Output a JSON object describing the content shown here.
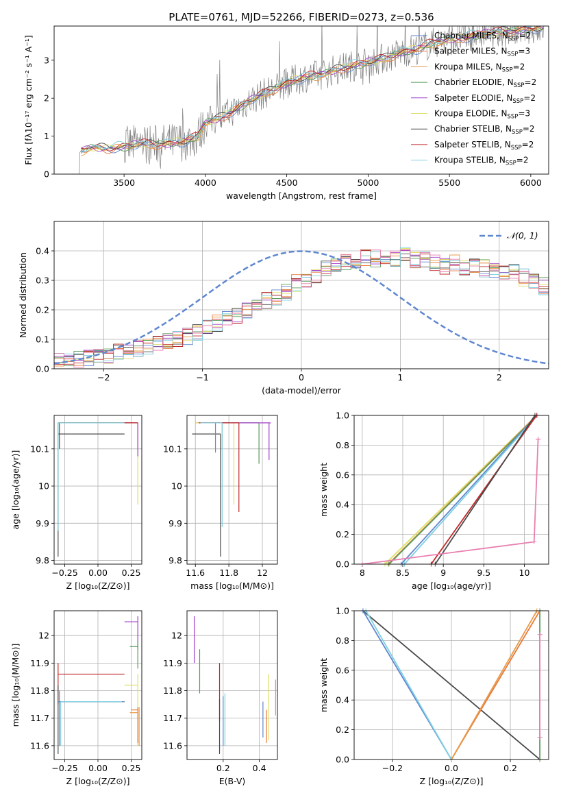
{
  "figure": {
    "title": "PLATE=0761, MJD=52266, FIBERID=0273, z=0.536"
  },
  "palette": {
    "blue": "#5f87d0",
    "orange": "#e8793a",
    "lightorange": "#e89a4a",
    "green": "#5a9a5a",
    "purple": "#a03cc8",
    "yellow": "#dede68",
    "darkgray": "#4a4a4a",
    "red": "#c0282a",
    "cyan": "#7fd0e0",
    "pink": "#e87fb0",
    "data": "#808080"
  },
  "chart_data": [
    {
      "id": "spectrum",
      "type": "line",
      "xlabel": "wavelength [Angstrom, rest frame]",
      "ylabel": "Flux [fλ10⁻¹⁷ erg cm⁻² s⁻¹ A⁻¹]",
      "xlim": [
        3070,
        6110
      ],
      "ylim": [
        0,
        3.9
      ],
      "xticks": [
        3500,
        4000,
        4500,
        5000,
        5500,
        6000
      ],
      "yticks": [
        0,
        1,
        2,
        3
      ],
      "legend_position": "top-right",
      "grid": false,
      "continuum_x": [
        3230,
        3300,
        3400,
        3500,
        3600,
        3700,
        3800,
        3900,
        3950,
        4000,
        4100,
        4200,
        4300,
        4400,
        4500,
        4600,
        4700,
        4800,
        4900,
        5000,
        5100,
        5200,
        5300,
        5400,
        5500,
        5600,
        5700,
        5800,
        5900,
        6000
      ],
      "continuum_y": [
        0.6,
        0.7,
        0.68,
        0.72,
        0.8,
        0.78,
        0.82,
        0.9,
        0.98,
        1.35,
        1.5,
        1.75,
        2.0,
        2.2,
        2.4,
        2.55,
        2.6,
        2.75,
        2.85,
        2.95,
        3.05,
        3.2,
        3.3,
        3.45,
        3.55,
        3.6,
        3.7,
        3.75,
        3.78,
        3.85
      ],
      "series": [
        {
          "name": "Chabrier MILES, N",
          "sub": "SSP",
          "suffix": "=2",
          "color": "blue"
        },
        {
          "name": "Salpeter MILES, N",
          "sub": "SSP",
          "suffix": "=3",
          "color": "orange"
        },
        {
          "name": "Kroupa MILES, N",
          "sub": "SSP",
          "suffix": "=2",
          "color": "lightorange"
        },
        {
          "name": "Chabrier ELODIE, N",
          "sub": "SSP",
          "suffix": "=2",
          "color": "green"
        },
        {
          "name": "Salpeter ELODIE, N",
          "sub": "SSP",
          "suffix": "=2",
          "color": "purple"
        },
        {
          "name": "Kroupa ELODIE, N",
          "sub": "SSP",
          "suffix": "=3",
          "color": "yellow"
        },
        {
          "name": "Chabrier STELIB, N",
          "sub": "SSP",
          "suffix": "=2",
          "color": "darkgray"
        },
        {
          "name": "Salpeter STELIB, N",
          "sub": "SSP",
          "suffix": "=2",
          "color": "red"
        },
        {
          "name": "Kroupa STELIB, N",
          "sub": "SSP",
          "suffix": "=2",
          "color": "cyan"
        }
      ]
    },
    {
      "id": "residuals",
      "type": "line",
      "xlabel": "(data-model)/error",
      "ylabel": "Normed distribution",
      "xlim": [
        -2.5,
        2.5
      ],
      "ylim": [
        0,
        0.5
      ],
      "xticks": [
        -2,
        -1,
        0,
        1,
        2
      ],
      "yticks": [
        0.0,
        0.1,
        0.2,
        0.3,
        0.4
      ],
      "grid": true,
      "legend": "𝒩(0, 1)",
      "legend_position": "top-right",
      "gaussian": {
        "mu": 0,
        "sigma": 1,
        "color": "blue"
      },
      "bin_width": 0.1,
      "hist_base": [
        0.025,
        0.028,
        0.032,
        0.036,
        0.04,
        0.048,
        0.055,
        0.06,
        0.068,
        0.075,
        0.085,
        0.095,
        0.1,
        0.11,
        0.125,
        0.14,
        0.155,
        0.17,
        0.18,
        0.195,
        0.21,
        0.23,
        0.24,
        0.26,
        0.29,
        0.3,
        0.32,
        0.34,
        0.35,
        0.36,
        0.37,
        0.38,
        0.375,
        0.38,
        0.37,
        0.39,
        0.37,
        0.375,
        0.36,
        0.35,
        0.36,
        0.34,
        0.35,
        0.34,
        0.33,
        0.32,
        0.33,
        0.31,
        0.3,
        0.28,
        0.27,
        0.26,
        0.24,
        0.23,
        0.2,
        0.19,
        0.18,
        0.16,
        0.15,
        0.14,
        0.13,
        0.115,
        0.1,
        0.09,
        0.085,
        0.075,
        0.07,
        0.065,
        0.06,
        0.05
      ]
    },
    {
      "id": "age_vs_Z",
      "type": "line",
      "xlabel": "Z [log₁₀(Z/Z⊙)]",
      "ylabel": "age  [log₁₀(age/yr)]",
      "xlim": [
        -0.33,
        0.33
      ],
      "ylim": [
        9.79,
        10.19
      ],
      "xticks": [
        -0.25,
        0.0,
        0.25
      ],
      "xticklabels": [
        "−0.25",
        "0.00",
        "0.25"
      ],
      "yticks": [
        9.8,
        9.9,
        10.0,
        10.1
      ],
      "grid": true,
      "segments": [
        {
          "color": "darkgray",
          "h": [
            -0.3,
            0.2,
            10.14
          ],
          "v": [
            -0.3,
            9.81,
            10.17
          ]
        },
        {
          "color": "blue",
          "h": [
            -0.3,
            0.28,
            10.17
          ],
          "v": [
            -0.3,
            9.96,
            10.17
          ]
        },
        {
          "color": "orange",
          "h": [
            -0.28,
            0.3,
            10.17
          ],
          "v": [
            0.3,
            10.1,
            10.17
          ]
        },
        {
          "color": "yellow",
          "h": [
            -0.29,
            0.3,
            10.17
          ],
          "v": [
            0.3,
            9.95,
            10.17
          ]
        },
        {
          "color": "green",
          "h": [
            -0.3,
            0.25,
            10.17
          ],
          "v": [
            -0.3,
            9.92,
            10.17
          ]
        },
        {
          "color": "purple",
          "h": [
            0.2,
            0.3,
            10.17
          ],
          "v": [
            0.3,
            10.08,
            10.17
          ]
        },
        {
          "color": "red",
          "h": [
            -0.29,
            0.3,
            10.17
          ],
          "v": [
            -0.29,
            10.1,
            10.17
          ]
        },
        {
          "color": "cyan",
          "h": [
            -0.3,
            0.2,
            10.17
          ],
          "v": [
            -0.3,
            9.88,
            10.17
          ]
        }
      ]
    },
    {
      "id": "age_vs_mass",
      "type": "line",
      "xlabel": "mass [log₁₀(M/M⊙)]",
      "ylabel": "",
      "xlim": [
        11.55,
        12.09
      ],
      "ylim": [
        9.79,
        10.19
      ],
      "xticks": [
        11.6,
        11.8,
        12.0
      ],
      "yticks": [
        9.8,
        9.9,
        10.0,
        10.1
      ],
      "grid": true,
      "segments": [
        {
          "color": "darkgray",
          "h": [
            11.58,
            11.75,
            10.14
          ],
          "v": [
            11.75,
            9.81,
            10.14
          ]
        },
        {
          "color": "blue",
          "h": [
            11.62,
            11.8,
            10.17
          ],
          "v": [
            11.72,
            10.09,
            10.17
          ]
        },
        {
          "color": "orange",
          "h": [
            11.6,
            11.8,
            10.17
          ],
          "v": [
            11.76,
            10.1,
            10.17
          ]
        },
        {
          "color": "yellow",
          "h": [
            11.6,
            11.83,
            10.17
          ],
          "v": [
            11.83,
            9.95,
            10.17
          ]
        },
        {
          "color": "green",
          "h": [
            11.65,
            11.98,
            10.17
          ],
          "v": [
            11.98,
            10.06,
            10.17
          ]
        },
        {
          "color": "purple",
          "h": [
            11.7,
            12.05,
            10.17
          ],
          "v": [
            12.04,
            10.07,
            10.17
          ]
        },
        {
          "color": "red",
          "h": [
            11.62,
            11.86,
            10.17
          ],
          "v": [
            11.86,
            9.93,
            10.17
          ]
        },
        {
          "color": "cyan",
          "h": [
            11.63,
            11.76,
            10.17
          ],
          "v": [
            11.76,
            9.89,
            10.17
          ]
        }
      ]
    },
    {
      "id": "massweight_vs_age",
      "type": "line",
      "xlabel": "age  [log₁₀(age/yr)]",
      "ylabel": "mass weight",
      "xlim": [
        7.9,
        10.3
      ],
      "ylim": [
        0,
        1
      ],
      "xticks": [
        8.0,
        8.5,
        9.0,
        9.5,
        10.0
      ],
      "yticks": [
        0.0,
        0.2,
        0.4,
        0.6,
        0.8,
        1.0
      ],
      "grid": true,
      "series": [
        {
          "color": "yellow",
          "x": [
            8.28,
            10.15
          ],
          "y": [
            0,
            1
          ]
        },
        {
          "color": "lightorange",
          "x": [
            8.32,
            10.15
          ],
          "y": [
            0,
            1
          ]
        },
        {
          "color": "green",
          "x": [
            8.33,
            10.16
          ],
          "y": [
            0,
            1
          ]
        },
        {
          "color": "blue",
          "x": [
            8.48,
            10.15
          ],
          "y": [
            0,
            1
          ]
        },
        {
          "color": "cyan",
          "x": [
            8.52,
            10.16
          ],
          "y": [
            0,
            1
          ]
        },
        {
          "color": "red",
          "x": [
            8.85,
            10.15
          ],
          "y": [
            0,
            1
          ]
        },
        {
          "color": "darkgray",
          "x": [
            8.9,
            10.13
          ],
          "y": [
            0,
            1
          ]
        },
        {
          "color": "pink",
          "x": [
            8.0,
            10.12,
            10.17,
            10.17
          ],
          "y": [
            0.0,
            0.15,
            0.84,
            0.84
          ]
        }
      ]
    },
    {
      "id": "mass_vs_Z",
      "type": "line",
      "xlabel": "Z [log₁₀(Z/Z⊙)]",
      "ylabel": "mass [log₁₀(M/M⊙)]",
      "xlim": [
        -0.33,
        0.33
      ],
      "ylim": [
        11.55,
        12.09
      ],
      "xticks": [
        -0.25,
        0.0,
        0.25
      ],
      "xticklabels": [
        "−0.25",
        "0.00",
        "0.25"
      ],
      "yticks": [
        11.6,
        11.7,
        11.8,
        11.9,
        12.0
      ],
      "grid": true,
      "segments": [
        {
          "color": "purple",
          "h": [
            0.2,
            0.3,
            12.05
          ],
          "v": [
            0.3,
            11.95,
            12.07
          ]
        },
        {
          "color": "green",
          "h": [
            0.24,
            0.3,
            11.96
          ],
          "v": [
            0.3,
            11.88,
            11.98
          ]
        },
        {
          "color": "red",
          "h": [
            -0.3,
            0.2,
            11.86
          ],
          "v": [
            -0.3,
            11.75,
            11.9
          ]
        },
        {
          "color": "yellow",
          "h": [
            0.2,
            0.3,
            11.82
          ],
          "v": [
            0.3,
            11.6,
            11.86
          ]
        },
        {
          "color": "darkgray",
          "h": [
            -0.3,
            0.2,
            11.76
          ],
          "v": [
            -0.3,
            11.57,
            11.82
          ]
        },
        {
          "color": "blue",
          "h": [
            -0.3,
            0.2,
            11.76
          ],
          "v": [
            -0.29,
            11.6,
            11.8
          ]
        },
        {
          "color": "cyan",
          "h": [
            -0.28,
            0.18,
            11.76
          ],
          "v": [
            -0.28,
            11.6,
            11.76
          ]
        },
        {
          "color": "orange",
          "h": [
            0.25,
            0.3,
            11.73
          ],
          "v": [
            0.3,
            11.61,
            11.74
          ]
        },
        {
          "color": "lightorange",
          "h": [
            0.24,
            0.3,
            11.72
          ],
          "v": [
            0.31,
            11.6,
            11.74
          ]
        }
      ]
    },
    {
      "id": "mass_vs_ebv",
      "type": "line",
      "xlabel": "E(B-V)",
      "ylabel": "",
      "xlim": [
        0.0,
        0.5
      ],
      "ylim": [
        11.55,
        12.09
      ],
      "xticks": [
        0.2,
        0.4
      ],
      "yticks": [
        11.6,
        11.7,
        11.8,
        11.9,
        12.0
      ],
      "grid": true,
      "segments": [
        {
          "color": "purple",
          "v": [
            0.04,
            11.9,
            12.07
          ]
        },
        {
          "color": "green",
          "v": [
            0.07,
            11.79,
            11.95
          ]
        },
        {
          "color": "red",
          "v": [
            0.18,
            11.69,
            11.9
          ]
        },
        {
          "color": "darkgray",
          "v": [
            0.18,
            11.57,
            11.77
          ]
        },
        {
          "color": "blue",
          "v": [
            0.2,
            11.6,
            11.78
          ]
        },
        {
          "color": "cyan",
          "v": [
            0.21,
            11.6,
            11.79
          ]
        },
        {
          "color": "blue",
          "v": [
            0.42,
            11.63,
            11.76
          ]
        },
        {
          "color": "orange",
          "v": [
            0.44,
            11.61,
            11.73
          ]
        },
        {
          "color": "yellow",
          "v": [
            0.45,
            11.62,
            11.86
          ]
        },
        {
          "color": "pink",
          "v": [
            0.49,
            11.71,
            11.84
          ]
        }
      ]
    },
    {
      "id": "massweight_vs_Z",
      "type": "line",
      "xlabel": "Z [log₁₀(Z/Z⊙)]",
      "ylabel": "mass weight",
      "xlim": [
        -0.33,
        0.33
      ],
      "ylim": [
        0,
        1
      ],
      "xticks": [
        -0.2,
        0.0,
        0.2
      ],
      "xticklabels": [
        "−0.2",
        "0.0",
        "0.2"
      ],
      "yticks": [
        0.0,
        0.2,
        0.4,
        0.6,
        0.8,
        1.0
      ],
      "grid": true,
      "series": [
        {
          "color": "darkgray",
          "x": [
            -0.3,
            0.3
          ],
          "y": [
            1,
            0
          ]
        },
        {
          "color": "blue",
          "x": [
            -0.3,
            0.0
          ],
          "y": [
            1,
            0
          ]
        },
        {
          "color": "cyan",
          "x": [
            -0.29,
            0.0
          ],
          "y": [
            1,
            0
          ]
        },
        {
          "color": "orange",
          "x": [
            0.0,
            0.3
          ],
          "y": [
            0,
            1
          ]
        },
        {
          "color": "lightorange",
          "x": [
            0.0,
            0.29
          ],
          "y": [
            0,
            1
          ]
        },
        {
          "color": "yellow",
          "x": [
            0.3,
            0.3
          ],
          "y": [
            0,
            1
          ]
        },
        {
          "color": "green",
          "x": [
            0.3,
            0.3
          ],
          "y": [
            0,
            1
          ]
        },
        {
          "color": "pink",
          "x": [
            0.3,
            0.3
          ],
          "y": [
            0.15,
            0.84
          ]
        }
      ]
    }
  ]
}
